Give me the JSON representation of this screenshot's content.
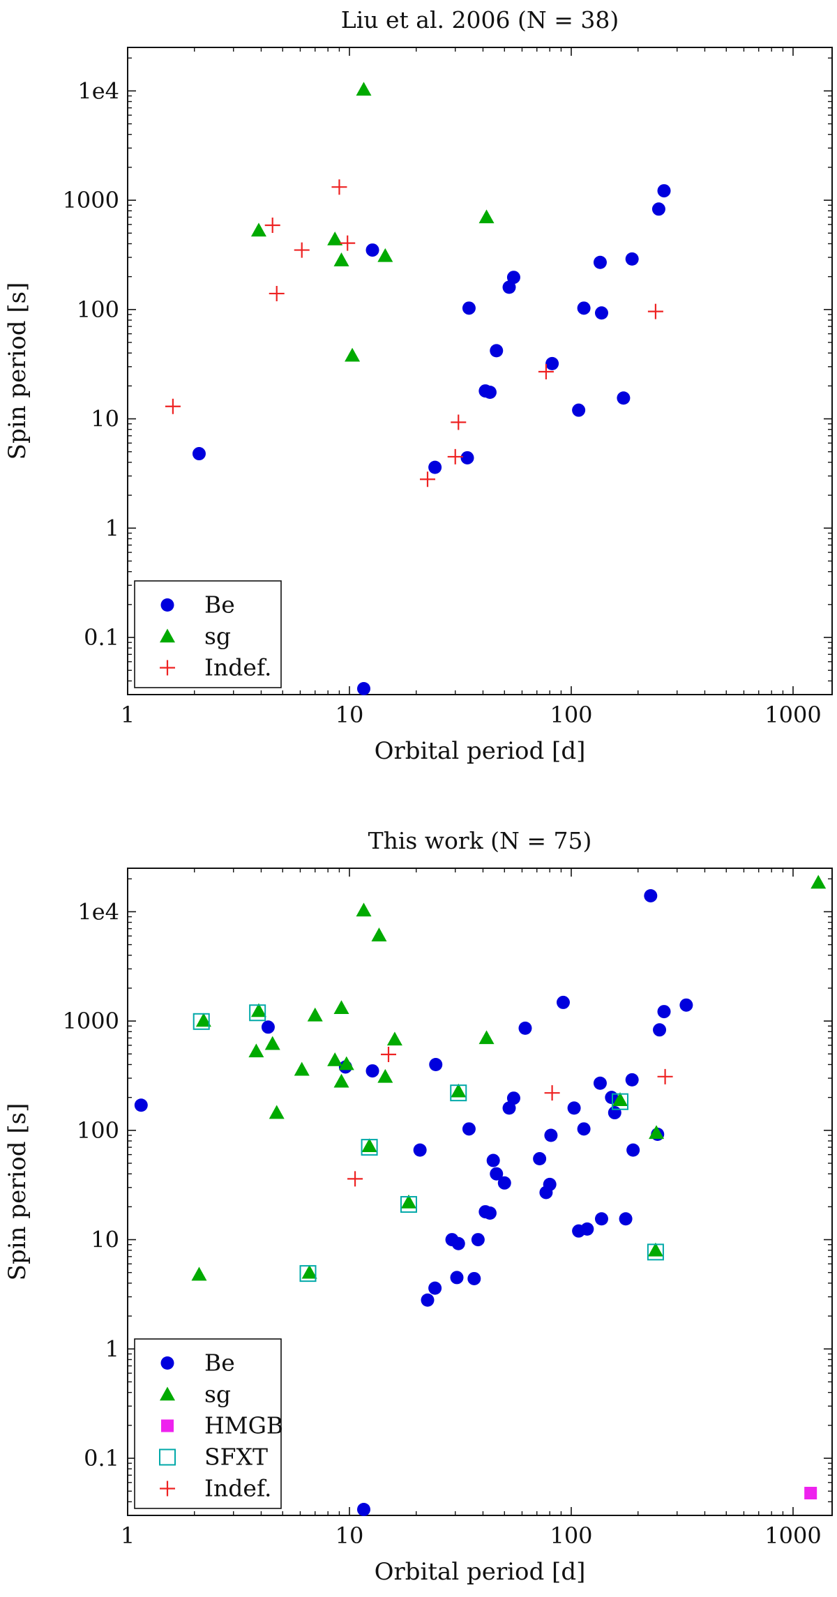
{
  "chart_data": [
    {
      "type": "scatter",
      "title": "Liu et al. 2006 (N = 38)",
      "xlabel": "Orbital period [d]",
      "ylabel": "Spin period [s]",
      "xscale": "log",
      "yscale": "log",
      "xlim": [
        1,
        1500
      ],
      "ylim": [
        0.03,
        25000
      ],
      "xticks": [
        {
          "v": 1,
          "label": "1"
        },
        {
          "v": 10,
          "label": "10"
        },
        {
          "v": 100,
          "label": "100"
        },
        {
          "v": 1000,
          "label": "1000"
        }
      ],
      "yticks": [
        {
          "v": 0.1,
          "label": "0.1"
        },
        {
          "v": 1,
          "label": "1"
        },
        {
          "v": 10,
          "label": "10"
        },
        {
          "v": 100,
          "label": "100"
        },
        {
          "v": 1000,
          "label": "1000"
        },
        {
          "v": 10000,
          "label": "1e4"
        }
      ],
      "legend_position": "bottom-left",
      "series": [
        {
          "name": "Be",
          "marker": "circle",
          "color": "#0000dd",
          "points": [
            [
              2.1,
              4.8
            ],
            [
              11.6,
              0.034
            ],
            [
              12.7,
              350
            ],
            [
              24.3,
              3.6
            ],
            [
              34,
              4.4
            ],
            [
              34.6,
              103
            ],
            [
              41,
              18
            ],
            [
              43,
              17.5
            ],
            [
              46,
              42
            ],
            [
              52.5,
              160
            ],
            [
              55,
              197
            ],
            [
              82,
              32
            ],
            [
              108,
              12
            ],
            [
              114,
              103
            ],
            [
              135,
              270
            ],
            [
              137,
              93
            ],
            [
              172,
              15.5
            ],
            [
              188,
              290
            ],
            [
              248,
              830
            ],
            [
              262,
              1220
            ]
          ]
        },
        {
          "name": "sg",
          "marker": "triangle",
          "color": "#00aa00",
          "points": [
            [
              3.9,
              530
            ],
            [
              8.6,
              440
            ],
            [
              9.2,
              283
            ],
            [
              10.3,
              38
            ],
            [
              11.6,
              10300
            ],
            [
              14.5,
              310
            ],
            [
              41.5,
              700
            ]
          ]
        },
        {
          "name": "Indef.",
          "marker": "plus",
          "color": "#ee2222",
          "points": [
            [
              1.6,
              13
            ],
            [
              4.5,
              590
            ],
            [
              4.7,
              140
            ],
            [
              6.1,
              350
            ],
            [
              9,
              1320
            ],
            [
              9.8,
              405
            ],
            [
              22.5,
              2.8
            ],
            [
              30,
              4.5
            ],
            [
              31,
              9.3
            ],
            [
              77,
              27
            ],
            [
              240,
              96
            ]
          ]
        }
      ]
    },
    {
      "type": "scatter",
      "title": "This work (N = 75)",
      "xlabel": "Orbital period [d]",
      "ylabel": "Spin period [s]",
      "xscale": "log",
      "yscale": "log",
      "xlim": [
        1,
        1500
      ],
      "ylim": [
        0.03,
        25000
      ],
      "xticks": [
        {
          "v": 1,
          "label": "1"
        },
        {
          "v": 10,
          "label": "10"
        },
        {
          "v": 100,
          "label": "100"
        },
        {
          "v": 1000,
          "label": "1000"
        }
      ],
      "yticks": [
        {
          "v": 0.1,
          "label": "0.1"
        },
        {
          "v": 1,
          "label": "1"
        },
        {
          "v": 10,
          "label": "10"
        },
        {
          "v": 100,
          "label": "100"
        },
        {
          "v": 1000,
          "label": "1000"
        },
        {
          "v": 10000,
          "label": "1e4"
        }
      ],
      "legend_position": "bottom-left",
      "series": [
        {
          "name": "Be",
          "marker": "circle",
          "color": "#0000dd",
          "points": [
            [
              1.15,
              170
            ],
            [
              4.3,
              880
            ],
            [
              9.6,
              380
            ],
            [
              11.6,
              0.034
            ],
            [
              12.7,
              350
            ],
            [
              20.8,
              66
            ],
            [
              22.5,
              2.8
            ],
            [
              24.3,
              3.6
            ],
            [
              24.5,
              400
            ],
            [
              29,
              10
            ],
            [
              30.5,
              4.5
            ],
            [
              31,
              9.2
            ],
            [
              34.6,
              103
            ],
            [
              36.5,
              4.4
            ],
            [
              38,
              10
            ],
            [
              41,
              18
            ],
            [
              43,
              17.5
            ],
            [
              44.5,
              53
            ],
            [
              46,
              40
            ],
            [
              50,
              33
            ],
            [
              52.5,
              160
            ],
            [
              55,
              197
            ],
            [
              62,
              860
            ],
            [
              72,
              55
            ],
            [
              77,
              27
            ],
            [
              80,
              32
            ],
            [
              81,
              90
            ],
            [
              92,
              1480
            ],
            [
              103,
              160
            ],
            [
              108,
              12
            ],
            [
              114,
              103
            ],
            [
              118,
              12.5
            ],
            [
              135,
              270
            ],
            [
              137,
              15.5
            ],
            [
              152,
              200
            ],
            [
              157,
              145
            ],
            [
              176,
              15.5
            ],
            [
              188,
              290
            ],
            [
              190,
              66
            ],
            [
              228,
              14000
            ],
            [
              245,
              92
            ],
            [
              250,
              830
            ],
            [
              262,
              1220
            ],
            [
              330,
              1400
            ]
          ]
        },
        {
          "name": "sg",
          "marker": "triangle",
          "color": "#00aa00",
          "points": [
            [
              2.1,
              4.8
            ],
            [
              2.2,
              1010
            ],
            [
              3.8,
              530
            ],
            [
              3.9,
              1240
            ],
            [
              4.5,
              620
            ],
            [
              4.7,
              145
            ],
            [
              6.1,
              360
            ],
            [
              6.6,
              5
            ],
            [
              7,
              1130
            ],
            [
              8.6,
              440
            ],
            [
              9.2,
              280
            ],
            [
              9.2,
              1320
            ],
            [
              9.7,
              405
            ],
            [
              11.6,
              10300
            ],
            [
              12.3,
              72
            ],
            [
              13.6,
              6100
            ],
            [
              14.5,
              310
            ],
            [
              16,
              680
            ],
            [
              18.5,
              22
            ],
            [
              31,
              228
            ],
            [
              41.5,
              700
            ],
            [
              166,
              190
            ],
            [
              240,
              8
            ],
            [
              242,
              95
            ],
            [
              1300,
              18500
            ]
          ]
        },
        {
          "name": "HMGB",
          "marker": "square-filled",
          "color": "#ee22ee",
          "points": [
            [
              1200,
              0.048
            ]
          ]
        },
        {
          "name": "SFXT",
          "marker": "square-open",
          "color": "#00a8a8",
          "points": [
            [
              2.15,
              990
            ],
            [
              3.85,
              1190
            ],
            [
              6.5,
              4.9
            ],
            [
              12.3,
              70
            ],
            [
              18.5,
              21
            ],
            [
              31,
              220
            ],
            [
              166,
              183
            ],
            [
              240,
              7.7
            ]
          ]
        },
        {
          "name": "Indef.",
          "marker": "plus",
          "color": "#ee2222",
          "points": [
            [
              10.6,
              36
            ],
            [
              15,
              495
            ],
            [
              82,
              220
            ],
            [
              265,
              310
            ]
          ]
        }
      ]
    }
  ]
}
